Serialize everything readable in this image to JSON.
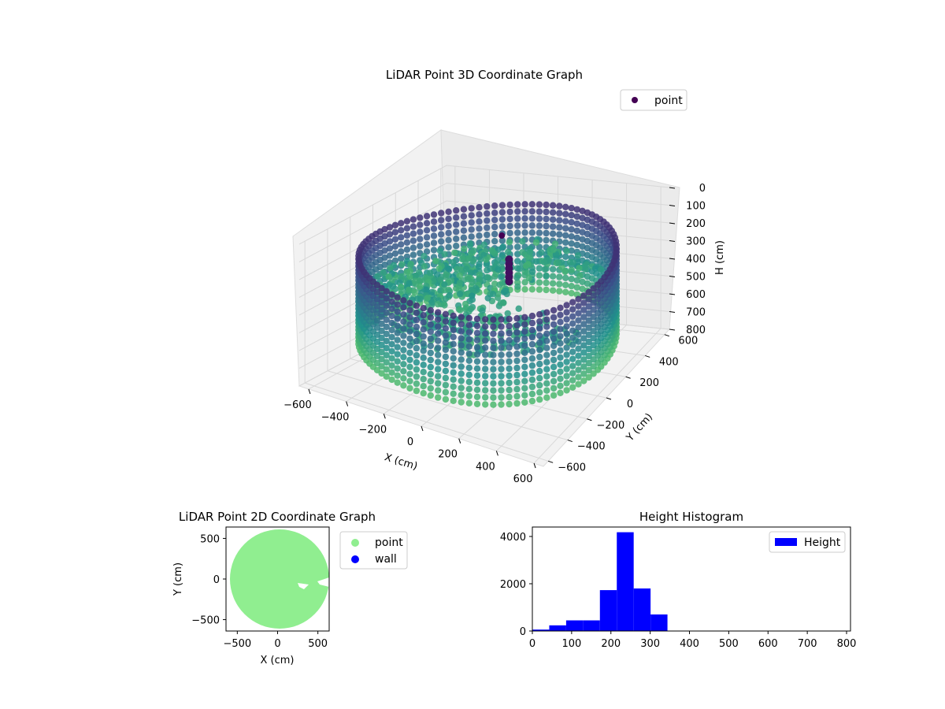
{
  "chart_data": [
    {
      "type": "scatter",
      "title": "LiDAR Point 3D Coordinate Graph",
      "xlabel": "X (cm)",
      "ylabel": "Y (cm)",
      "zlabel": "H (cm)",
      "xlim": [
        -650,
        650
      ],
      "ylim": [
        -650,
        650
      ],
      "zlim": [
        0,
        800
      ],
      "z_inverted": true,
      "xticks": [
        -600,
        -400,
        -200,
        0,
        200,
        400,
        600
      ],
      "yticks": [
        -600,
        -400,
        -200,
        0,
        200,
        400,
        600
      ],
      "zticks": [
        0,
        100,
        200,
        300,
        400,
        500,
        600,
        700,
        800
      ],
      "grid": true,
      "legend": {
        "position": "top-right",
        "entries": [
          "point"
        ]
      },
      "colormap": "viridis",
      "description_of_data": "ring of points at radius ~620 cm, heights ~150–650 cm, interior floor points ~300–400 cm",
      "ring": {
        "radius": 620,
        "h_min": 150,
        "h_max": 650
      },
      "series": [
        {
          "name": "point",
          "color": "#440154"
        }
      ]
    },
    {
      "type": "scatter",
      "title": "LiDAR Point 2D Coordinate Graph",
      "xlabel": "X (cm)",
      "ylabel": "Y (cm)",
      "xlim": [
        -640,
        640
      ],
      "ylim": [
        -640,
        640
      ],
      "xticks": [
        -500,
        0,
        500
      ],
      "yticks": [
        -500,
        0,
        500
      ],
      "legend": {
        "position": "outside-right",
        "entries": [
          "point",
          "wall"
        ]
      },
      "series": [
        {
          "name": "point",
          "color": "#90ee90"
        },
        {
          "name": "wall",
          "color": "#0000ff"
        }
      ]
    },
    {
      "type": "bar",
      "title": "Height Histogram",
      "xlim": [
        0,
        810
      ],
      "ylim": [
        0,
        4400
      ],
      "xticks": [
        0,
        100,
        200,
        300,
        400,
        500,
        600,
        700,
        800
      ],
      "yticks": [
        0,
        2000,
        4000
      ],
      "legend": {
        "position": "top-right",
        "entries": [
          "Height"
        ]
      },
      "color": "#0000ff",
      "bin_width": 43,
      "bin_starts": [
        0,
        43,
        86,
        129,
        172,
        215,
        258,
        301,
        344,
        387,
        430,
        473,
        516,
        559,
        602,
        645,
        688,
        731,
        774
      ],
      "values": [
        60,
        240,
        450,
        450,
        1730,
        4180,
        1800,
        700,
        0,
        0,
        0,
        0,
        0,
        0,
        0,
        0,
        0,
        0,
        0
      ]
    }
  ]
}
